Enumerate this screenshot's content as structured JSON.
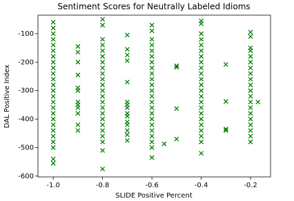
{
  "chart_data": {
    "type": "scatter",
    "title": "Sentiment Scores for Neutrally Labeled Idioms",
    "x_label": "SLIDE Positive Percent",
    "y_label": "DAL Positive Index",
    "color": "#008000",
    "marker": "x",
    "x": [
      -1,
      -1,
      -1,
      -1,
      -1,
      -1,
      -1,
      -1,
      -1,
      -1,
      -1,
      -1,
      -1,
      -1,
      -1,
      -1,
      -1,
      -1,
      -1,
      -1,
      -1,
      -1,
      -1,
      -1,
      -1,
      -0.9,
      -0.9,
      -0.9,
      -0.9,
      -0.9,
      -0.9,
      -0.9,
      -0.9,
      -0.9,
      -0.9,
      -0.9,
      -0.9,
      -0.8,
      -0.8,
      -0.8,
      -0.8,
      -0.8,
      -0.8,
      -0.8,
      -0.8,
      -0.8,
      -0.8,
      -0.8,
      -0.8,
      -0.8,
      -0.8,
      -0.8,
      -0.8,
      -0.8,
      -0.8,
      -0.8,
      -0.8,
      -0.8,
      -0.8,
      -0.8,
      -0.7,
      -0.7,
      -0.7,
      -0.7,
      -0.7,
      -0.7,
      -0.7,
      -0.7,
      -0.7,
      -0.7,
      -0.7,
      -0.7,
      -0.7,
      -0.7,
      -0.7,
      -0.6,
      -0.6,
      -0.6,
      -0.6,
      -0.6,
      -0.6,
      -0.6,
      -0.6,
      -0.6,
      -0.6,
      -0.6,
      -0.6,
      -0.6,
      -0.6,
      -0.6,
      -0.6,
      -0.6,
      -0.6,
      -0.6,
      -0.6,
      -0.6,
      -0.6,
      -0.6,
      -0.55,
      -0.5,
      -0.5,
      -0.5,
      -0.5,
      -0.4,
      -0.4,
      -0.4,
      -0.4,
      -0.4,
      -0.4,
      -0.4,
      -0.4,
      -0.4,
      -0.4,
      -0.4,
      -0.4,
      -0.4,
      -0.4,
      -0.4,
      -0.4,
      -0.4,
      -0.4,
      -0.4,
      -0.4,
      -0.4,
      -0.4,
      -0.4,
      -0.3,
      -0.3,
      -0.3,
      -0.3,
      -0.2,
      -0.2,
      -0.2,
      -0.2,
      -0.2,
      -0.2,
      -0.2,
      -0.2,
      -0.2,
      -0.2,
      -0.2,
      -0.2,
      -0.2,
      -0.2,
      -0.2,
      -0.2,
      -0.2,
      -0.2,
      -0.2,
      -0.2,
      -0.17
    ],
    "values": [
      -60,
      -80,
      -100,
      -120,
      -140,
      -160,
      -180,
      -200,
      -220,
      -240,
      -260,
      -280,
      -300,
      -320,
      -340,
      -360,
      -380,
      -400,
      -420,
      -440,
      -460,
      -480,
      -500,
      -540,
      -555,
      -145,
      -165,
      -200,
      -245,
      -290,
      -300,
      -340,
      -350,
      -360,
      -380,
      -420,
      -440,
      -50,
      -70,
      -120,
      -140,
      -160,
      -180,
      -200,
      -220,
      -240,
      -260,
      -280,
      -300,
      -320,
      -340,
      -360,
      -380,
      -400,
      -420,
      -440,
      -460,
      -480,
      -510,
      -575,
      -105,
      -155,
      -175,
      -195,
      -270,
      -340,
      -350,
      -360,
      -380,
      -390,
      -410,
      -420,
      -440,
      -455,
      -475,
      -70,
      -90,
      -120,
      -140,
      -160,
      -180,
      -200,
      -220,
      -240,
      -260,
      -280,
      -300,
      -320,
      -340,
      -360,
      -380,
      -400,
      -420,
      -440,
      -460,
      -480,
      -500,
      -535,
      -487,
      -213,
      -218,
      -363,
      -470,
      -55,
      -65,
      -100,
      -120,
      -140,
      -160,
      -180,
      -200,
      -220,
      -240,
      -260,
      -280,
      -300,
      -320,
      -340,
      -360,
      -380,
      -400,
      -420,
      -440,
      -460,
      -480,
      -520,
      -208,
      -338,
      -435,
      -440,
      -95,
      -110,
      -150,
      -160,
      -180,
      -200,
      -220,
      -240,
      -260,
      -280,
      -300,
      -320,
      -340,
      -360,
      -380,
      -400,
      -420,
      -440,
      -460,
      -480,
      -340
    ],
    "xlim": [
      -1.062,
      -0.119
    ],
    "ylim": [
      -603,
      -35
    ],
    "xticks": [
      {
        "value": -1,
        "label": "-1.0"
      },
      -0.8,
      -0.6,
      -0.4,
      -0.2
    ],
    "yticks": [
      -600,
      -500,
      -400,
      -300,
      -200,
      -100
    ],
    "grid": false
  }
}
